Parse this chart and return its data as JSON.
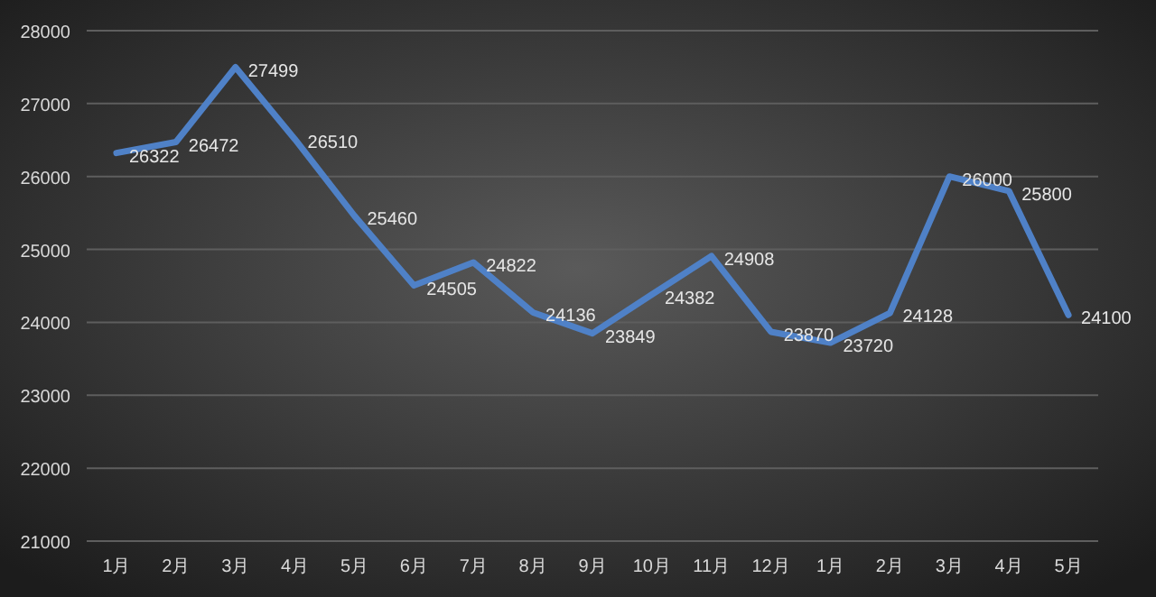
{
  "chart_data": {
    "type": "line",
    "categories": [
      "1月",
      "2月",
      "3月",
      "4月",
      "5月",
      "6月",
      "7月",
      "8月",
      "9月",
      "10月",
      "11月",
      "12月",
      "1月",
      "2月",
      "3月",
      "4月",
      "5月"
    ],
    "series": [
      {
        "color": "#4f81c7",
        "values": [
          26322,
          26472,
          27499,
          26510,
          25460,
          24505,
          24822,
          24136,
          23849,
          24382,
          24908,
          23870,
          23720,
          24128,
          26000,
          25800,
          24100
        ]
      }
    ],
    "ylim": [
      21000,
      28000
    ],
    "yticks": [
      21000,
      22000,
      23000,
      24000,
      25000,
      26000,
      27000,
      28000
    ],
    "grid": "y",
    "data_labels": true
  }
}
